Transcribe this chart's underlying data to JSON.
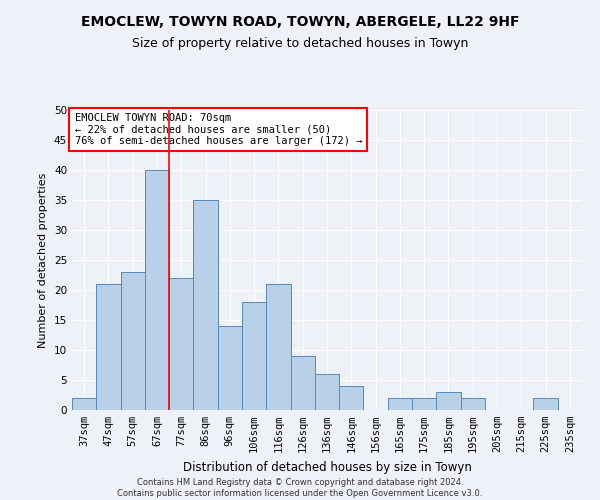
{
  "title1": "EMOCLEW, TOWYN ROAD, TOWYN, ABERGELE, LL22 9HF",
  "title2": "Size of property relative to detached houses in Towyn",
  "xlabel": "Distribution of detached houses by size in Towyn",
  "ylabel": "Number of detached properties",
  "categories": [
    "37sqm",
    "47sqm",
    "57sqm",
    "67sqm",
    "77sqm",
    "86sqm",
    "96sqm",
    "106sqm",
    "116sqm",
    "126sqm",
    "136sqm",
    "146sqm",
    "156sqm",
    "165sqm",
    "175sqm",
    "185sqm",
    "195sqm",
    "205sqm",
    "215sqm",
    "225sqm",
    "235sqm"
  ],
  "values": [
    2,
    21,
    23,
    40,
    22,
    35,
    14,
    18,
    21,
    9,
    6,
    4,
    0,
    2,
    2,
    3,
    2,
    0,
    0,
    2,
    0
  ],
  "bar_color": "#b8d0e8",
  "bar_edge_color": "#5588bb",
  "vline_color": "red",
  "vline_x": 3.5,
  "annotation_title": "EMOCLEW TOWYN ROAD: 70sqm",
  "annotation_line2": "← 22% of detached houses are smaller (50)",
  "annotation_line3": "76% of semi-detached houses are larger (172) →",
  "annotation_box_color": "white",
  "annotation_box_edge": "red",
  "footer1": "Contains HM Land Registry data © Crown copyright and database right 2024.",
  "footer2": "Contains public sector information licensed under the Open Government Licence v3.0.",
  "ylim": [
    0,
    50
  ],
  "yticks": [
    0,
    5,
    10,
    15,
    20,
    25,
    30,
    35,
    40,
    45,
    50
  ],
  "bg_color": "#eef2f8",
  "grid_color": "#ffffff",
  "title1_fontsize": 10,
  "title2_fontsize": 9,
  "xlabel_fontsize": 8.5,
  "ylabel_fontsize": 8,
  "tick_fontsize": 7.5,
  "footer_fontsize": 6,
  "ann_fontsize": 7.5
}
